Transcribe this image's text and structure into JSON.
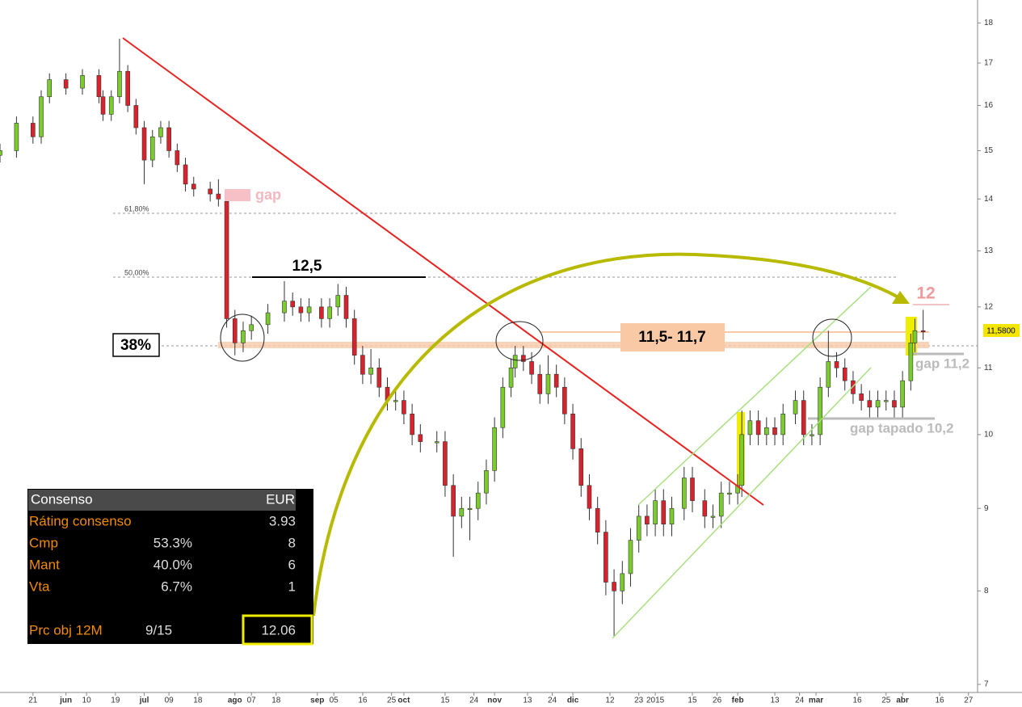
{
  "chart_data": {
    "type": "candlestick",
    "log_scale": true,
    "up_color": "#7acc2c",
    "down_color": "#d9222c",
    "xlim": [
      0,
      237.2
    ],
    "ylim": [
      6.92,
      18.6
    ],
    "yticks": [
      7,
      8,
      9,
      10,
      11,
      12,
      13,
      14,
      15,
      16,
      17,
      18
    ],
    "xticks": [
      {
        "value": 8,
        "label": "21"
      },
      {
        "value": 16,
        "label": "jun"
      },
      {
        "value": 21,
        "label": "10"
      },
      {
        "value": 28,
        "label": "19"
      },
      {
        "value": 35,
        "label": "jul"
      },
      {
        "value": 41,
        "label": "09"
      },
      {
        "value": 48,
        "label": "18"
      },
      {
        "value": 57,
        "label": "ago"
      },
      {
        "value": 61,
        "label": "07"
      },
      {
        "value": 67,
        "label": "18"
      },
      {
        "value": 77,
        "label": "sep"
      },
      {
        "value": 81,
        "label": "05"
      },
      {
        "value": 88,
        "label": "16"
      },
      {
        "value": 95,
        "label": "25"
      },
      {
        "value": 98,
        "label": "oct"
      },
      {
        "value": 108,
        "label": "15"
      },
      {
        "value": 115,
        "label": "24"
      },
      {
        "value": 120,
        "label": "nov"
      },
      {
        "value": 128,
        "label": "13"
      },
      {
        "value": 134,
        "label": "24"
      },
      {
        "value": 139,
        "label": "dic"
      },
      {
        "value": 148,
        "label": "12"
      },
      {
        "value": 155,
        "label": "23"
      },
      {
        "value": 159,
        "label": "2015"
      },
      {
        "value": 168,
        "label": "15"
      },
      {
        "value": 174,
        "label": "26"
      },
      {
        "value": 179,
        "label": "feb"
      },
      {
        "value": 188,
        "label": "13"
      },
      {
        "value": 194,
        "label": "24"
      },
      {
        "value": 198,
        "label": "mar"
      },
      {
        "value": 208,
        "label": "16"
      },
      {
        "value": 215,
        "label": "25"
      },
      {
        "value": 219,
        "label": "abr"
      },
      {
        "value": 228,
        "label": "16"
      },
      {
        "value": 235,
        "label": "27"
      }
    ],
    "x": [
      0,
      4,
      8,
      10,
      12,
      16,
      20,
      24,
      25,
      27,
      29,
      31,
      33,
      35,
      37,
      39,
      41,
      43,
      45,
      47,
      51,
      53,
      55,
      57,
      59,
      61,
      65,
      69,
      71,
      73,
      75,
      78,
      80,
      82,
      84,
      86,
      88,
      90,
      92,
      94,
      96,
      98,
      100,
      102,
      106,
      108,
      110,
      112,
      114,
      116,
      118,
      120,
      122,
      124,
      125,
      127,
      129,
      131,
      133,
      135,
      137,
      139,
      141,
      143,
      145,
      147,
      149,
      151,
      153,
      155,
      157,
      159,
      161,
      163,
      166,
      168,
      171,
      173,
      175,
      177,
      179,
      180,
      182,
      184,
      186,
      188,
      190,
      193,
      195,
      197,
      199,
      201,
      203,
      205,
      207,
      209,
      211,
      213,
      215,
      217,
      219,
      221,
      222,
      224
    ],
    "open": [
      14.9,
      15.0,
      15.6,
      15.3,
      16.2,
      16.6,
      16.4,
      16.7,
      16.2,
      15.8,
      16.2,
      16.8,
      16.0,
      15.5,
      14.8,
      15.3,
      15.5,
      15.0,
      14.7,
      14.3,
      14.2,
      14.1,
      13.95,
      11.8,
      11.4,
      11.6,
      11.7,
      11.9,
      12.1,
      12.0,
      11.9,
      12.0,
      11.8,
      12.0,
      12.2,
      11.8,
      11.2,
      10.9,
      11.0,
      10.7,
      10.5,
      10.5,
      10.3,
      10.0,
      9.9,
      9.9,
      9.3,
      8.9,
      9.0,
      9.0,
      9.2,
      9.5,
      10.1,
      10.7,
      11.0,
      11.2,
      11.1,
      10.9,
      10.6,
      10.9,
      10.7,
      10.3,
      9.8,
      9.3,
      9.0,
      8.7,
      8.1,
      8.0,
      8.2,
      8.6,
      8.9,
      8.8,
      9.1,
      8.8,
      9.0,
      9.4,
      9.1,
      8.9,
      8.9,
      9.2,
      9.2,
      9.3,
      10.0,
      10.2,
      10.0,
      10.1,
      10.0,
      10.3,
      10.5,
      10.0,
      10.0,
      10.7,
      11.1,
      11.0,
      10.8,
      10.6,
      10.5,
      10.4,
      10.5,
      10.5,
      10.4,
      10.8,
      11.4,
      11.6
    ],
    "high": [
      15.15,
      15.75,
      15.75,
      16.35,
      16.75,
      16.75,
      16.85,
      16.85,
      16.35,
      16.35,
      17.6,
      16.95,
      16.15,
      15.65,
      15.45,
      15.65,
      15.65,
      15.15,
      14.85,
      14.45,
      14.35,
      14.4,
      13.95,
      11.95,
      11.75,
      11.85,
      12.05,
      12.45,
      12.25,
      12.15,
      12.15,
      12.15,
      12.15,
      12.4,
      12.35,
      11.95,
      11.35,
      11.3,
      11.15,
      10.85,
      10.65,
      10.65,
      10.45,
      10.15,
      10.05,
      10.05,
      9.45,
      9.15,
      9.15,
      9.35,
      9.65,
      10.25,
      10.85,
      11.15,
      11.35,
      11.35,
      11.25,
      11.05,
      11.2,
      11.05,
      10.85,
      10.45,
      9.95,
      9.45,
      9.15,
      8.85,
      8.25,
      8.35,
      8.75,
      9.05,
      9.05,
      9.25,
      9.25,
      9.15,
      9.55,
      9.55,
      9.25,
      9.05,
      9.35,
      9.35,
      9.45,
      10.35,
      10.35,
      10.35,
      10.25,
      10.25,
      10.45,
      10.65,
      10.65,
      10.15,
      10.85,
      11.6,
      11.25,
      11.15,
      10.95,
      10.75,
      10.65,
      10.65,
      10.65,
      10.65,
      10.95,
      11.55,
      11.8,
      11.95
    ],
    "low": [
      14.75,
      14.85,
      15.15,
      15.15,
      16.05,
      16.25,
      16.25,
      16.05,
      15.65,
      15.65,
      16.05,
      15.85,
      15.35,
      14.3,
      14.65,
      15.15,
      14.85,
      14.55,
      14.15,
      14.05,
      13.95,
      13.85,
      11.65,
      11.2,
      11.25,
      11.45,
      11.55,
      11.75,
      11.85,
      11.75,
      11.75,
      11.65,
      11.65,
      11.85,
      11.65,
      11.05,
      10.75,
      10.75,
      10.55,
      10.35,
      10.35,
      10.15,
      9.85,
      9.75,
      9.75,
      9.15,
      8.4,
      8.75,
      8.6,
      8.85,
      9.05,
      9.35,
      9.95,
      10.55,
      10.85,
      10.95,
      10.75,
      10.45,
      10.45,
      10.55,
      10.15,
      9.65,
      9.15,
      8.85,
      8.55,
      7.95,
      7.5,
      7.85,
      8.05,
      8.45,
      8.65,
      8.65,
      8.65,
      8.65,
      8.85,
      8.95,
      8.75,
      8.75,
      8.75,
      9.05,
      9.05,
      9.15,
      9.85,
      9.85,
      9.85,
      9.85,
      9.85,
      10.15,
      9.85,
      9.85,
      9.85,
      10.55,
      10.85,
      10.65,
      10.45,
      10.35,
      10.25,
      10.25,
      10.35,
      10.25,
      10.25,
      10.65,
      11.25,
      11.45
    ],
    "close": [
      15.0,
      15.6,
      15.3,
      16.2,
      16.6,
      16.4,
      16.7,
      16.2,
      15.8,
      16.2,
      16.8,
      16.0,
      15.5,
      14.8,
      15.3,
      15.5,
      15.0,
      14.7,
      14.3,
      14.2,
      14.1,
      14.0,
      11.8,
      11.4,
      11.6,
      11.7,
      11.9,
      12.1,
      12.0,
      11.9,
      12.0,
      11.8,
      12.0,
      12.2,
      11.8,
      11.2,
      10.9,
      11.0,
      10.7,
      10.5,
      10.5,
      10.3,
      10.0,
      9.9,
      9.9,
      9.3,
      8.9,
      9.0,
      9.0,
      9.2,
      9.5,
      10.1,
      10.7,
      11.0,
      11.2,
      11.1,
      10.9,
      10.6,
      10.9,
      10.7,
      10.3,
      9.8,
      9.3,
      9.0,
      8.7,
      8.1,
      8.0,
      8.2,
      8.6,
      8.9,
      8.8,
      9.1,
      8.8,
      9.0,
      9.4,
      9.1,
      8.9,
      8.9,
      9.2,
      9.2,
      9.3,
      10.0,
      10.2,
      10.0,
      10.1,
      10.0,
      10.3,
      10.5,
      10.0,
      10.0,
      10.7,
      11.1,
      11.0,
      10.8,
      10.6,
      10.5,
      10.4,
      10.5,
      10.5,
      10.4,
      10.8,
      11.4,
      11.6,
      11.58
    ]
  },
  "annotations": {
    "gap": "gap",
    "fib_618": "61,80%",
    "fib_50": "50,00%",
    "resistance": "12,5",
    "pct": "38%",
    "zone": "11,5- 11,7",
    "target": "12",
    "last_price": "11,5800",
    "gap_up": "gap 11,2",
    "gap_filled": "gap tapado 10,2"
  },
  "consensus_table": {
    "header": [
      "Consenso",
      "EUR"
    ],
    "rows": [
      [
        "Ráting consenso",
        "3.93"
      ],
      [
        "Cmp",
        "53.3%",
        "8"
      ],
      [
        "Mant",
        "40.0%",
        "6"
      ],
      [
        "Vta",
        "6.7%",
        "1"
      ],
      [
        "Prc obj 12M",
        "9/15",
        "12.06"
      ]
    ]
  }
}
